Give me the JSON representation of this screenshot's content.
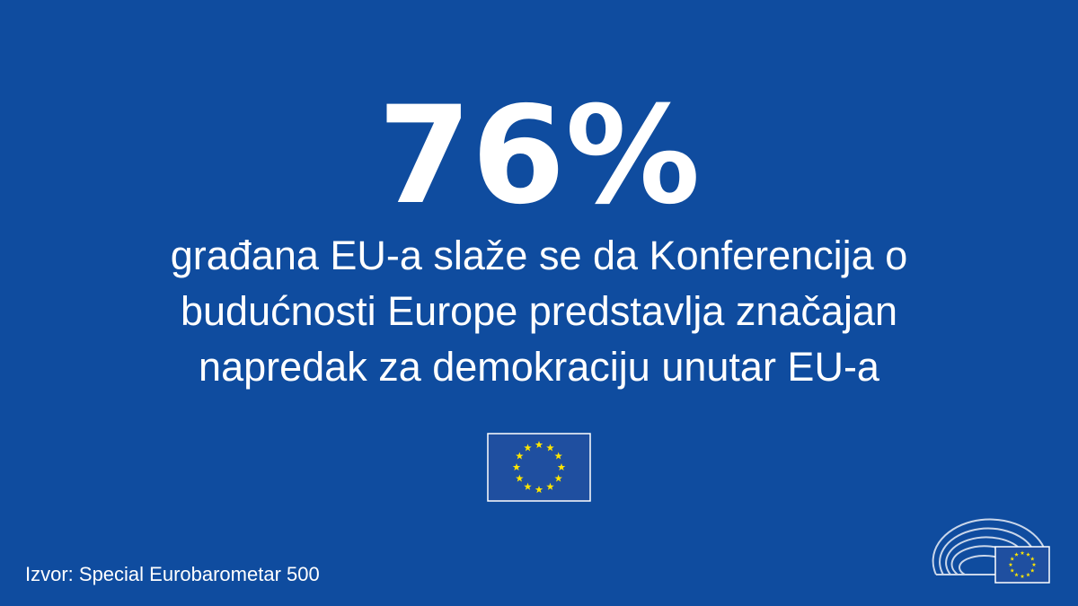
{
  "headline": "76%",
  "body": {
    "lines": [
      "građana EU-a slaže se da Konferencija o",
      "budućnosti Europe predstavlja značajan",
      "napredak za demokraciju unutar EU-a"
    ]
  },
  "source": "Izvor: Special Eurobarometar 500"
}
